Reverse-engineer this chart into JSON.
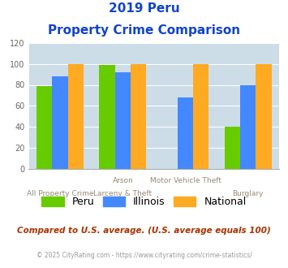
{
  "title_line1": "2019 Peru",
  "title_line2": "Property Crime Comparison",
  "x_labels_top": [
    "",
    "Arson",
    "Motor Vehicle Theft",
    ""
  ],
  "x_labels_bottom": [
    "All Property Crime",
    "Larceny & Theft",
    "",
    "Burglary"
  ],
  "series": {
    "Peru": [
      79,
      99,
      0,
      40
    ],
    "Illinois": [
      88,
      92,
      68,
      80
    ],
    "National": [
      100,
      100,
      100,
      100
    ]
  },
  "colors": {
    "Peru": "#66cc00",
    "Illinois": "#4488ff",
    "National": "#ffaa22"
  },
  "ylim": [
    0,
    120
  ],
  "yticks": [
    0,
    20,
    40,
    60,
    80,
    100,
    120
  ],
  "bar_width": 0.25,
  "background_color": "#ccdde8",
  "title_color": "#1144cc",
  "xlabel_color": "#998877",
  "footer_text": "Compared to U.S. average. (U.S. average equals 100)",
  "copyright_text": "© 2025 CityRating.com - https://www.cityrating.com/crime-statistics/",
  "footer_color": "#aa3300",
  "copyright_color": "#999999",
  "legend_labels": [
    "Peru",
    "Illinois",
    "National"
  ]
}
